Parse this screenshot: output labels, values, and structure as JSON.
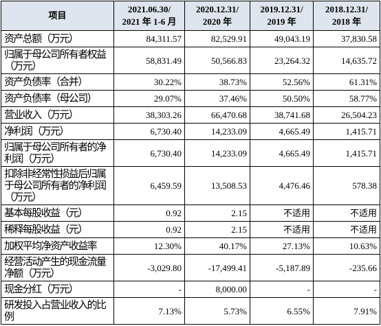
{
  "table": {
    "header": [
      "项目",
      "2021.06.30/\n2021 年 1-6 月",
      "2020.12.31/\n2020 年",
      "2019.12.31/\n2019 年",
      "2018.12.31/\n2018 年"
    ],
    "rows": [
      [
        "资产总额（万元）",
        "84,311.57",
        "82,529.91",
        "49,043.19",
        "37,830.58"
      ],
      [
        "归属于母公司所有者权益（万元）",
        "58,831.49",
        "50,566.83",
        "23,264.32",
        "14,635.72"
      ],
      [
        "资产负债率（合并）",
        "30.22%",
        "38.73%",
        "52.56%",
        "61.31%"
      ],
      [
        "资产负债率（母公司）",
        "29.07%",
        "37.46%",
        "50.50%",
        "58.77%"
      ],
      [
        "营业收入（万元）",
        "38,303.26",
        "66,470.68",
        "38,741.68",
        "26,504.23"
      ],
      [
        "净利润（万元）",
        "6,730.40",
        "14,233.09",
        "4,665.49",
        "1,415.71"
      ],
      [
        "归属于母公司所有者的净利润（万元）",
        "6,730.40",
        "14,233.09",
        "4,665.49",
        "1,415.71"
      ],
      [
        "扣除非经常性损益后归属于母公司所有者的净利润（万元）",
        "6,459.59",
        "13,508.53",
        "4,476.46",
        "578.38"
      ],
      [
        "基本每股收益（元）",
        "0.92",
        "2.15",
        "不适用",
        "不适用"
      ],
      [
        "稀释每股收益（元）",
        "0.92",
        "2.15",
        "不适用",
        "不适用"
      ],
      [
        "加权平均净资产收益率",
        "12.30%",
        "40.17%",
        "27.13%",
        "10.63%"
      ],
      [
        "经营活动产生的现金流量净额（万元）",
        "-3,029.80",
        "-17,499.41",
        "-5,187.89",
        "-235.66"
      ],
      [
        "现金分红（万元）",
        "-",
        "8,000.00",
        "-",
        "-"
      ],
      [
        "研发投入占营业收入的比例",
        "7.13%",
        "5.73%",
        "6.55%",
        "7.91%"
      ]
    ]
  }
}
